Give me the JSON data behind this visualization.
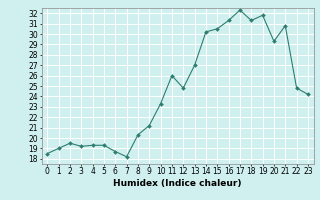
{
  "x": [
    0,
    1,
    2,
    3,
    4,
    5,
    6,
    7,
    8,
    9,
    10,
    11,
    12,
    13,
    14,
    15,
    16,
    17,
    18,
    19,
    20,
    21,
    22,
    23
  ],
  "y": [
    18.5,
    19.0,
    19.5,
    19.2,
    19.3,
    19.3,
    18.7,
    18.2,
    20.3,
    21.2,
    23.3,
    26.0,
    24.8,
    27.0,
    30.2,
    30.5,
    31.3,
    32.3,
    31.3,
    31.8,
    29.3,
    30.8,
    24.8,
    24.2
  ],
  "xlabel": "Humidex (Indice chaleur)",
  "xlim": [
    -0.5,
    23.5
  ],
  "ylim": [
    17.5,
    32.5
  ],
  "yticks": [
    18,
    19,
    20,
    21,
    22,
    23,
    24,
    25,
    26,
    27,
    28,
    29,
    30,
    31,
    32
  ],
  "xticks": [
    0,
    1,
    2,
    3,
    4,
    5,
    6,
    7,
    8,
    9,
    10,
    11,
    12,
    13,
    14,
    15,
    16,
    17,
    18,
    19,
    20,
    21,
    22,
    23
  ],
  "line_color": "#2e7d6e",
  "marker_color": "#2e7d6e",
  "bg_color": "#d0f0f0",
  "grid_color": "#ffffff",
  "axes_color": "#888888",
  "label_fontsize": 6.5,
  "tick_fontsize": 5.5
}
